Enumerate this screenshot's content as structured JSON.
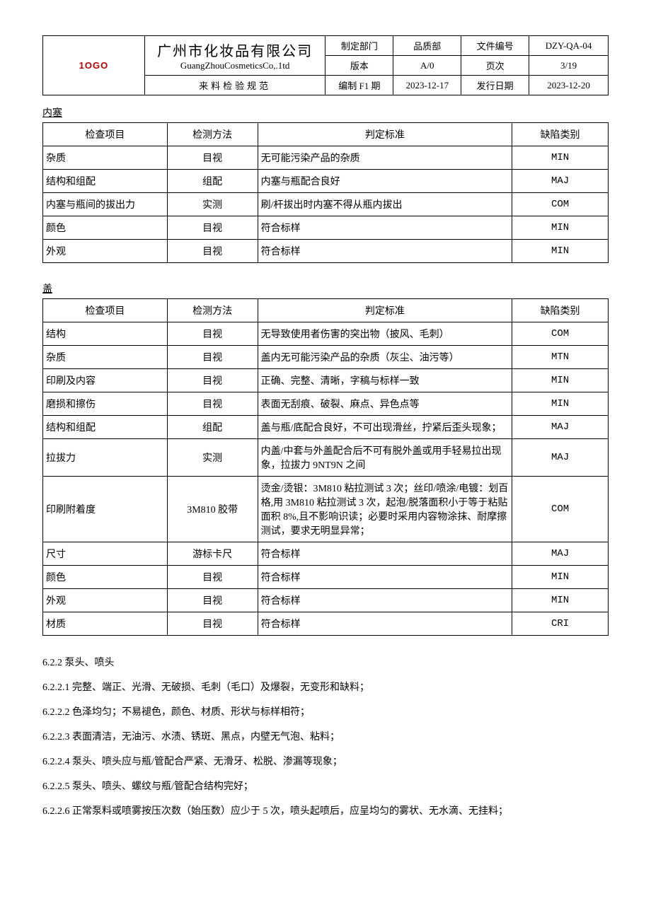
{
  "header": {
    "logo": "1OGO",
    "company_cn": "广州市化妆品有限公司",
    "company_en": "GuangZhouCosmeticsCo,.1td",
    "doc_title": "来料检验规范",
    "labels": {
      "dept": "制定部门",
      "dept_val": "品质部",
      "docno": "文件编号",
      "docno_val": "DZY-QA-04",
      "ver": "版本",
      "ver_val": "A/0",
      "page": "页次",
      "page_val": "3/19",
      "make": "编制 F1 期",
      "make_val": "2023-12-17",
      "issue": "发行日期",
      "issue_val": "2023-12-20"
    }
  },
  "table_headers": {
    "item": "检查项目",
    "method": "检测方法",
    "standard": "判定标准",
    "defect": "缺陷类别"
  },
  "section1": {
    "title": "内塞",
    "rows": [
      {
        "item": "杂质",
        "method": "目视",
        "standard": "无可能污染产品的杂质",
        "defect": "MIN"
      },
      {
        "item": "结构和组配",
        "method": "组配",
        "standard": "内塞与瓶配合良好",
        "defect": "MAJ"
      },
      {
        "item": "内塞与瓶间的拔出力",
        "method": "实测",
        "standard": "刷/杆拔出时内塞不得从瓶内拔出",
        "defect": "COM"
      },
      {
        "item": "颜色",
        "method": "目视",
        "standard": "符合标样",
        "defect": "MIN"
      },
      {
        "item": "外观",
        "method": "目视",
        "standard": "符合标样",
        "defect": "MIN"
      }
    ]
  },
  "section2": {
    "title": "盖",
    "rows": [
      {
        "item": "结构",
        "method": "目视",
        "standard": "无导致使用者伤害的突出物（披风、毛刺）",
        "defect": "COM"
      },
      {
        "item": "杂质",
        "method": "目视",
        "standard": "盖内无可能污染产品的杂质（灰尘、油污等）",
        "defect": "MTN"
      },
      {
        "item": "印刷及内容",
        "method": "目视",
        "standard": "正确、完整、清晰，字稿与标样一致",
        "defect": "MIN"
      },
      {
        "item": "磨损和擦伤",
        "method": "目视",
        "standard": "表面无刮痕、破裂、麻点、异色点等",
        "defect": "MIN"
      },
      {
        "item": "结构和组配",
        "method": "组配",
        "standard": "盖与瓶/底配合良好，不可出现滑丝，拧紧后歪头现象；",
        "defect": "MAJ"
      },
      {
        "item": "拉拔力",
        "method": "实测",
        "standard": "内盖/中套与外盖配合后不可有脱外盖或用手轻易拉出现象，拉拔力 9NT9N 之间",
        "defect": "MAJ"
      },
      {
        "item": "印刷附着度",
        "method": "3M810 胶带",
        "standard": "烫金/烫银：3M810 粘拉测试 3 次；丝印/喷涂/电镀：划百格,用 3M810 粘拉测试 3 次，起泡/脱落面积小于等于粘贴面积 8%,且不影响识读；必要时采用内容物涂抹、耐摩擦测试，要求无明显异常；",
        "defect": "COM"
      },
      {
        "item": "尺寸",
        "method": "游标卡尺",
        "standard": "符合标样",
        "defect": "MAJ"
      },
      {
        "item": "颜色",
        "method": "目视",
        "standard": "符合标样",
        "defect": "MIN"
      },
      {
        "item": "外观",
        "method": "目视",
        "standard": "符合标样",
        "defect": "MIN"
      },
      {
        "item": "材质",
        "method": "目视",
        "standard": "符合标样",
        "defect": "CRI"
      }
    ]
  },
  "paragraphs": [
    "6.2.2 泵头、喷头",
    "6.2.2.1 完整、端正、光滑、无破损、毛刺（毛口）及爆裂，无变形和缺料；",
    "6.2.2.2 色泽均匀；不易褪色，颜色、材质、形状与标样相符；",
    "6.2.2.3 表面清洁，无油污、水渍、锈斑、黑点，内壁无气泡、粘料；",
    "6.2.2.4 泵头、喷头应与瓶/管配合严紧、无滑牙、松脱、渗漏等现象；",
    "6.2.2.5 泵头、喷头、螺纹与瓶/管配合结构完好；",
    "6.2.2.6 正常泵料或喷雾按压次数（始压数）应少于 5 次，喷头起喷后，应呈均匀的雾状、无水滴、无挂料；"
  ],
  "layout": {
    "col_widths": {
      "item": "22%",
      "method": "16%",
      "standard": "45%",
      "defect": "17%"
    }
  }
}
